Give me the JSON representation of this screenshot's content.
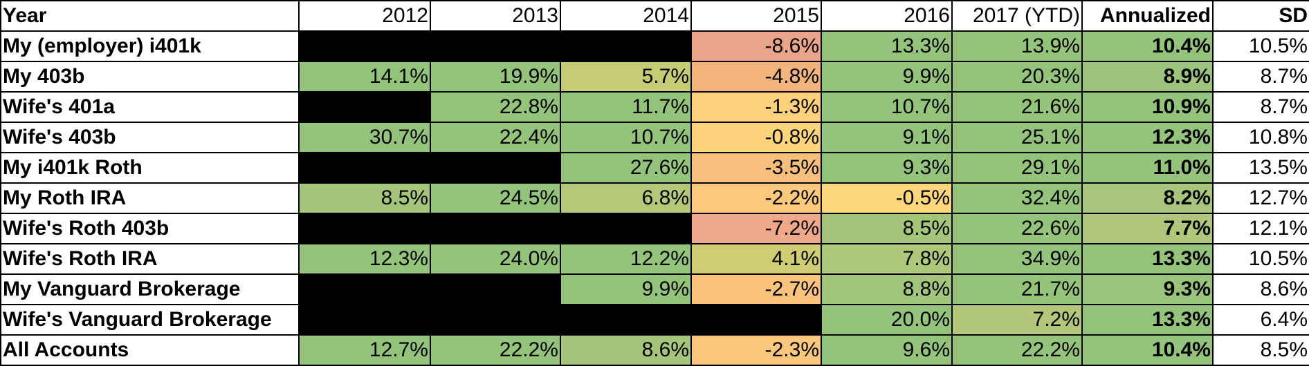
{
  "header": [
    "Year",
    "2012",
    "2013",
    "2014",
    "2015",
    "2016",
    "2017 (YTD)",
    "Annualized",
    "SD"
  ],
  "rows": [
    {
      "label": "My (employer) i401k",
      "cells": [
        {
          "value": "",
          "span": 3,
          "bg": "#000000"
        },
        {
          "value": "-8.6%",
          "bg": "#EBA48C"
        },
        {
          "value": "13.3%",
          "bg": "#94C47C"
        },
        {
          "value": "13.9%",
          "bg": "#94C47C"
        },
        {
          "value": "10.4%",
          "bg": "#94C47C",
          "bold": true
        },
        {
          "value": "10.5%",
          "bg": "#FFFFFF"
        }
      ]
    },
    {
      "label": "My 403b",
      "cells": [
        {
          "value": "14.1%",
          "bg": "#94C47C"
        },
        {
          "value": "19.9%",
          "bg": "#94C47C"
        },
        {
          "value": "5.7%",
          "bg": "#C6CC74"
        },
        {
          "value": "-4.8%",
          "bg": "#F3B47C"
        },
        {
          "value": "9.9%",
          "bg": "#94C47C"
        },
        {
          "value": "20.3%",
          "bg": "#94C47C"
        },
        {
          "value": "8.9%",
          "bg": "#9CC47C",
          "bold": true
        },
        {
          "value": "8.7%",
          "bg": "#FFFFFF"
        }
      ]
    },
    {
      "label": "Wife's 401a",
      "cells": [
        {
          "value": "",
          "span": 1,
          "bg": "#000000"
        },
        {
          "value": "22.8%",
          "bg": "#94C47C"
        },
        {
          "value": "11.7%",
          "bg": "#94C47C"
        },
        {
          "value": "-1.3%",
          "bg": "#FDD17C"
        },
        {
          "value": "10.7%",
          "bg": "#94C47C"
        },
        {
          "value": "21.6%",
          "bg": "#94C47C"
        },
        {
          "value": "10.9%",
          "bg": "#94C47C",
          "bold": true
        },
        {
          "value": "8.7%",
          "bg": "#FFFFFF"
        }
      ]
    },
    {
      "label": "Wife's 403b",
      "cells": [
        {
          "value": "30.7%",
          "bg": "#94C47C"
        },
        {
          "value": "22.4%",
          "bg": "#94C47C"
        },
        {
          "value": "10.7%",
          "bg": "#94C47C"
        },
        {
          "value": "-0.8%",
          "bg": "#FDD47C"
        },
        {
          "value": "9.1%",
          "bg": "#94C47C"
        },
        {
          "value": "25.1%",
          "bg": "#94C47C"
        },
        {
          "value": "12.3%",
          "bg": "#94C47C",
          "bold": true
        },
        {
          "value": "10.8%",
          "bg": "#FFFFFF"
        }
      ]
    },
    {
      "label": "My i401k Roth",
      "cells": [
        {
          "value": "",
          "span": 2,
          "bg": "#000000"
        },
        {
          "value": "27.6%",
          "bg": "#94C47C"
        },
        {
          "value": "-3.5%",
          "bg": "#F7BF7C"
        },
        {
          "value": "9.3%",
          "bg": "#94C47C"
        },
        {
          "value": "29.1%",
          "bg": "#94C47C"
        },
        {
          "value": "11.0%",
          "bg": "#94C47C",
          "bold": true
        },
        {
          "value": "13.5%",
          "bg": "#FFFFFF"
        }
      ]
    },
    {
      "label": "My Roth IRA",
      "cells": [
        {
          "value": "8.5%",
          "bg": "#A5C57B"
        },
        {
          "value": "24.5%",
          "bg": "#94C47C"
        },
        {
          "value": "6.8%",
          "bg": "#B5C87A"
        },
        {
          "value": "-2.2%",
          "bg": "#FBC87C"
        },
        {
          "value": "-0.5%",
          "bg": "#FED67C"
        },
        {
          "value": "32.4%",
          "bg": "#94C47C"
        },
        {
          "value": "8.2%",
          "bg": "#A7C57B",
          "bold": true
        },
        {
          "value": "12.7%",
          "bg": "#FFFFFF"
        }
      ]
    },
    {
      "label": "Wife's Roth 403b",
      "cells": [
        {
          "value": "",
          "span": 3,
          "bg": "#000000"
        },
        {
          "value": "-7.2%",
          "bg": "#EFA88A"
        },
        {
          "value": "8.5%",
          "bg": "#A5C57B"
        },
        {
          "value": "22.6%",
          "bg": "#94C47C"
        },
        {
          "value": "7.7%",
          "bg": "#AEC77B",
          "bold": true
        },
        {
          "value": "12.1%",
          "bg": "#FFFFFF"
        }
      ]
    },
    {
      "label": "Wife's Roth IRA",
      "cells": [
        {
          "value": "12.3%",
          "bg": "#94C47C"
        },
        {
          "value": "24.0%",
          "bg": "#94C47C"
        },
        {
          "value": "12.2%",
          "bg": "#94C47C"
        },
        {
          "value": "4.1%",
          "bg": "#CFCC74"
        },
        {
          "value": "7.8%",
          "bg": "#ADC77B"
        },
        {
          "value": "34.9%",
          "bg": "#94C47C"
        },
        {
          "value": "13.3%",
          "bg": "#94C47C",
          "bold": true
        },
        {
          "value": "10.5%",
          "bg": "#FFFFFF"
        }
      ]
    },
    {
      "label": "My Vanguard Brokerage",
      "cells": [
        {
          "value": "",
          "span": 2,
          "bg": "#000000"
        },
        {
          "value": "9.9%",
          "bg": "#94C47C"
        },
        {
          "value": "-2.7%",
          "bg": "#F9C37C"
        },
        {
          "value": "8.8%",
          "bg": "#A1C57B"
        },
        {
          "value": "21.7%",
          "bg": "#94C47C"
        },
        {
          "value": "9.3%",
          "bg": "#99C47C",
          "bold": true
        },
        {
          "value": "8.6%",
          "bg": "#FFFFFF"
        }
      ]
    },
    {
      "label": "Wife's Vanguard Brokerage",
      "cells": [
        {
          "value": "",
          "span": 4,
          "bg": "#000000"
        },
        {
          "value": "20.0%",
          "bg": "#94C47C"
        },
        {
          "value": "7.2%",
          "bg": "#B3C77A"
        },
        {
          "value": "13.3%",
          "bg": "#94C47C",
          "bold": true
        },
        {
          "value": "6.4%",
          "bg": "#FFFFFF"
        }
      ]
    },
    {
      "label": "All Accounts",
      "cells": [
        {
          "value": "12.7%",
          "bg": "#94C47C"
        },
        {
          "value": "22.2%",
          "bg": "#94C47C"
        },
        {
          "value": "8.6%",
          "bg": "#A5C57B"
        },
        {
          "value": "-2.3%",
          "bg": "#FBC77C"
        },
        {
          "value": "9.6%",
          "bg": "#94C47C"
        },
        {
          "value": "22.2%",
          "bg": "#94C47C"
        },
        {
          "value": "10.4%",
          "bg": "#94C47C",
          "bold": true
        },
        {
          "value": "8.5%",
          "bg": "#FFFFFF"
        }
      ]
    }
  ]
}
